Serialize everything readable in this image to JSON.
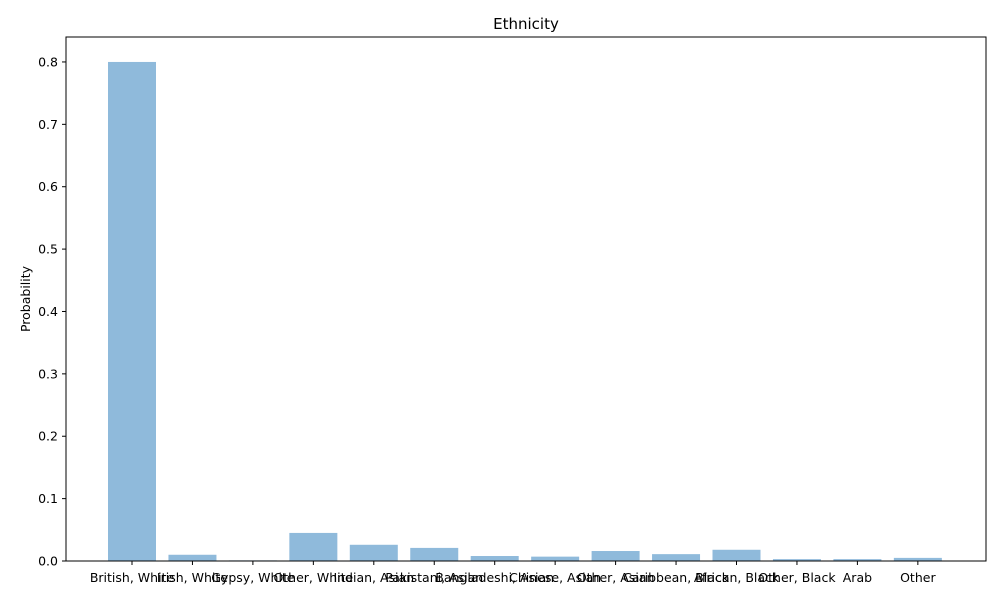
{
  "chart_data": {
    "type": "bar",
    "title": "Ethnicity",
    "xlabel": "",
    "ylabel": "Probability",
    "ylim": [
      0,
      0.84
    ],
    "yticks": [
      "0.0",
      "0.1",
      "0.2",
      "0.3",
      "0.4",
      "0.5",
      "0.6",
      "0.7",
      "0.8"
    ],
    "categories": [
      "British, White",
      "Irish, White",
      "Gypsy, White",
      "Other, White",
      "Indian, Asian",
      "Pakistani, Asian",
      "Bangladeshi, Asian",
      "Chinese, Asian",
      "Other, Asian",
      "Caribbean, Black",
      "African, Black",
      "Other, Black",
      "Arab",
      "Other"
    ],
    "values": [
      0.8,
      0.01,
      0.001,
      0.045,
      0.026,
      0.021,
      0.008,
      0.007,
      0.016,
      0.011,
      0.018,
      0.003,
      0.003,
      0.005
    ],
    "bar_color": "#8fbadb",
    "grid": false,
    "legend": false
  }
}
